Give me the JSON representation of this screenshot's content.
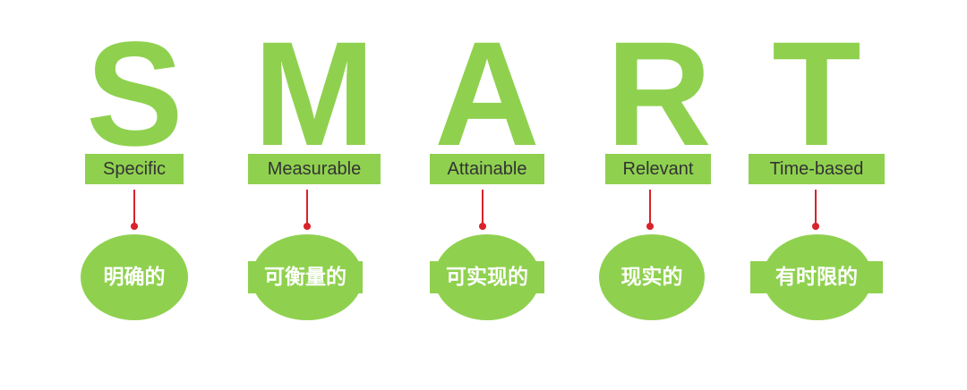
{
  "smart": [
    {
      "letter": "S",
      "english": "Specific",
      "chinese": "明确的"
    },
    {
      "letter": "M",
      "english": "Measurable",
      "chinese": "可衡量的"
    },
    {
      "letter": "A",
      "english": "Attainable",
      "chinese": "可实现的"
    },
    {
      "letter": "R",
      "english": "Relevant",
      "chinese": "现实的"
    },
    {
      "letter": "T",
      "english": "Time-based",
      "chinese": "有时限的"
    }
  ],
  "colors": {
    "green": "#8fd14f",
    "connector": "#d9222a",
    "label_text": "#333333"
  }
}
